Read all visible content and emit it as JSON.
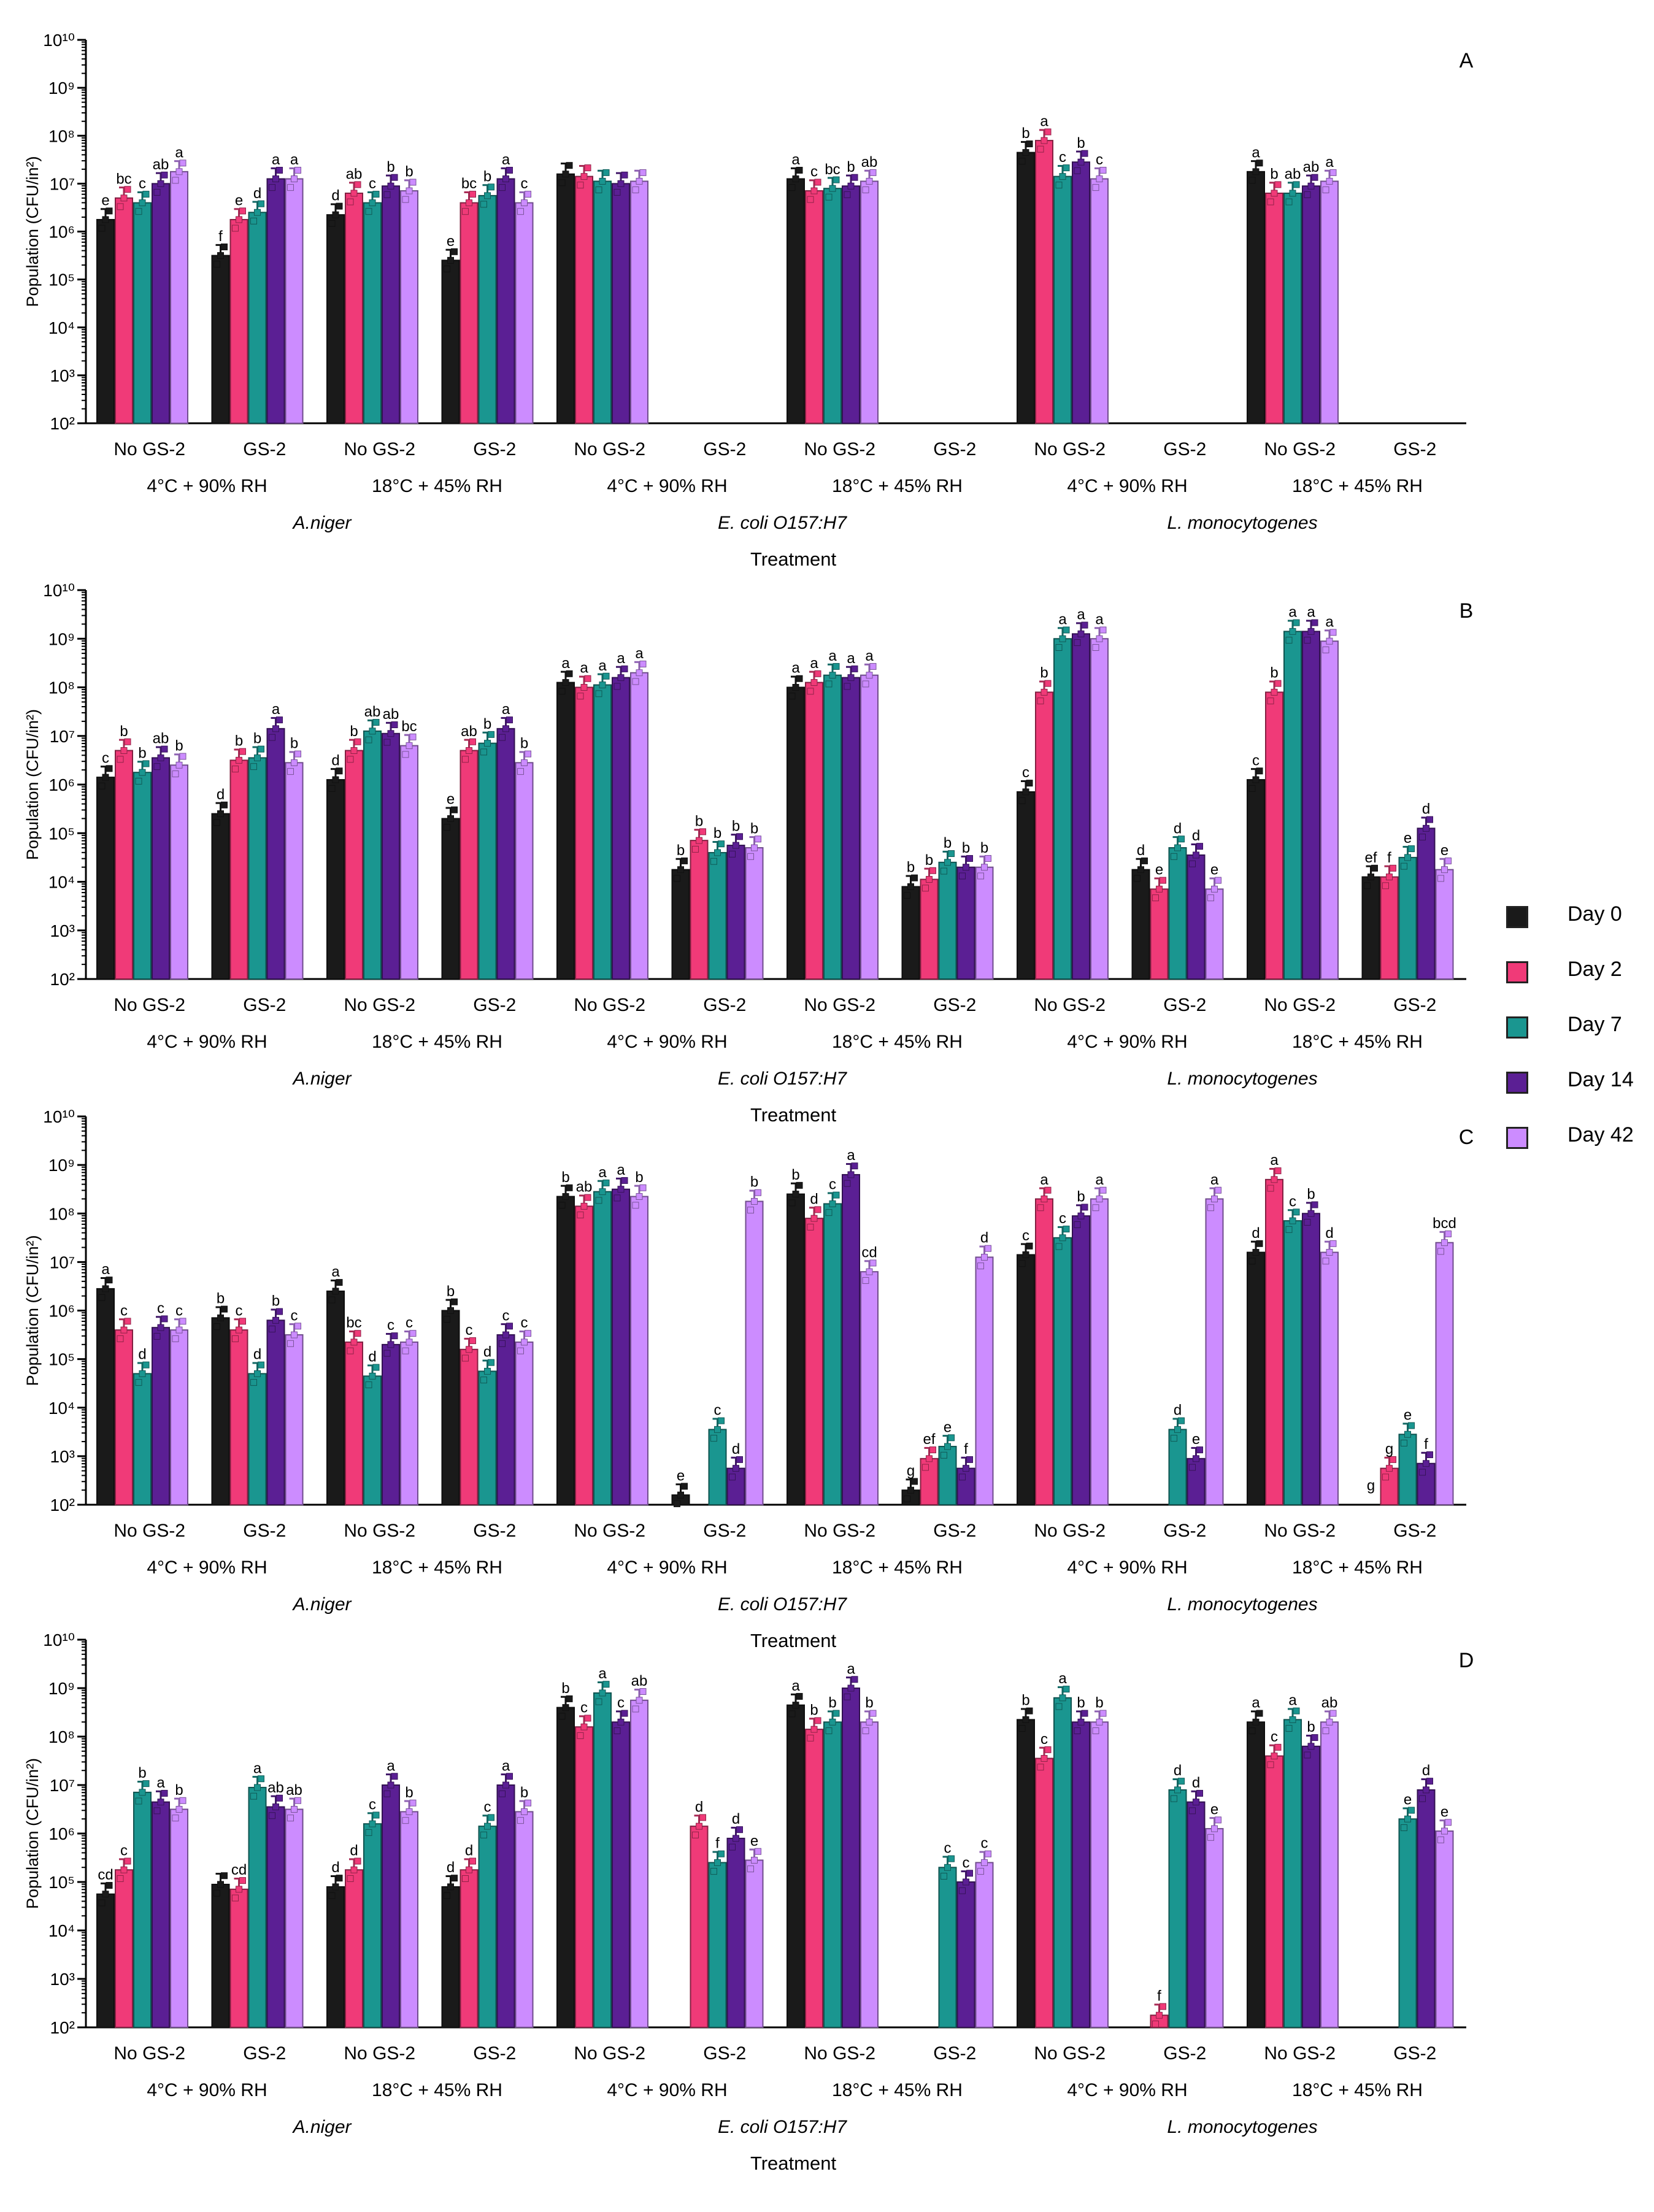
{
  "figure": {
    "legend": [
      {
        "label": "Day 0",
        "color": "#1a1a1a"
      },
      {
        "label": "Day 2",
        "color": "#f03a78"
      },
      {
        "label": "Day 7",
        "color": "#1a9690"
      },
      {
        "label": "Day 14",
        "color": "#5b1f94"
      },
      {
        "label": "Day 42",
        "color": "#cc8cff"
      }
    ]
  },
  "chart_data": [
    {
      "type": "bar",
      "panel_label": "A",
      "ylabel": "Population (CFU/in²)",
      "xlabel": "Treatment",
      "ylim_log10": [
        2,
        10
      ],
      "y_ticks": [
        "10²",
        "10³",
        "10⁴",
        "10⁵",
        "10⁶",
        "10⁷",
        "10⁸",
        "10⁹",
        "10¹⁰"
      ],
      "x_categories": [
        "No GS-2",
        "GS-2",
        "No GS-2",
        "GS-2",
        "No GS-2",
        "GS-2",
        "No GS-2",
        "GS-2",
        "No GS-2",
        "GS-2",
        "No GS-2",
        "GS-2"
      ],
      "conditions": [
        "4°C + 90% RH",
        "18°C + 45% RH",
        "4°C + 90% RH",
        "18°C + 45% RH",
        "4°C + 90% RH",
        "18°C + 45% RH"
      ],
      "organisms": [
        "A.niger",
        "E. coli O157:H7",
        "L. monocytogenes"
      ],
      "series": [
        {
          "name": "Day 0",
          "log10_values": [
            6.25,
            5.5,
            6.35,
            5.4,
            7.2,
            2,
            7.1,
            2,
            7.65,
            2,
            7.25,
            2
          ],
          "letters": [
            "e",
            "f",
            "d",
            "e",
            "",
            "",
            "a",
            "",
            "b",
            "",
            "a",
            ""
          ]
        },
        {
          "name": "Day 2",
          "log10_values": [
            6.7,
            6.25,
            6.8,
            6.6,
            7.15,
            2,
            6.85,
            2,
            7.9,
            2,
            6.8,
            2
          ],
          "letters": [
            "bc",
            "e",
            "ab",
            "bc",
            "",
            "",
            "c",
            "",
            "a",
            "",
            "b",
            ""
          ]
        },
        {
          "name": "Day 7",
          "log10_values": [
            6.6,
            6.4,
            6.6,
            6.75,
            7.05,
            2,
            6.9,
            2,
            7.15,
            2,
            6.8,
            2
          ],
          "letters": [
            "c",
            "d",
            "c",
            "b",
            "",
            "",
            "bc",
            "",
            "c",
            "",
            "ab",
            ""
          ]
        },
        {
          "name": "Day 14",
          "log10_values": [
            7.0,
            7.1,
            6.95,
            7.1,
            7.0,
            2,
            6.95,
            2,
            7.45,
            2,
            6.95,
            2
          ],
          "letters": [
            "ab",
            "a",
            "b",
            "a",
            "",
            "",
            "b",
            "",
            "b",
            "",
            "ab",
            ""
          ]
        },
        {
          "name": "Day 42",
          "log10_values": [
            7.25,
            7.1,
            6.85,
            6.6,
            7.05,
            2,
            7.05,
            2,
            7.1,
            2,
            7.05,
            2
          ],
          "letters": [
            "a",
            "a",
            "b",
            "c",
            "",
            "",
            "ab",
            "",
            "c",
            "",
            "a",
            ""
          ]
        }
      ]
    },
    {
      "type": "bar",
      "panel_label": "B",
      "ylabel": "Population (CFU/in²)",
      "xlabel": "Treatment",
      "ylim_log10": [
        2,
        10
      ],
      "y_ticks": [
        "10²",
        "10³",
        "10⁴",
        "10⁵",
        "10⁶",
        "10⁷",
        "10⁸",
        "10⁹",
        "10¹⁰"
      ],
      "x_categories": [
        "No GS-2",
        "GS-2",
        "No GS-2",
        "GS-2",
        "No GS-2",
        "GS-2",
        "No GS-2",
        "GS-2",
        "No GS-2",
        "GS-2",
        "No GS-2",
        "GS-2"
      ],
      "conditions": [
        "4°C + 90% RH",
        "18°C + 45% RH",
        "4°C + 90% RH",
        "18°C + 45% RH",
        "4°C + 90% RH",
        "18°C + 45% RH"
      ],
      "organisms": [
        "A.niger",
        "E. coli O157:H7",
        "L. monocytogenes"
      ],
      "series": [
        {
          "name": "Day 0",
          "log10_values": [
            6.15,
            5.4,
            6.1,
            5.3,
            8.1,
            4.25,
            8.0,
            3.9,
            5.85,
            4.25,
            6.1,
            4.1
          ],
          "letters": [
            "c",
            "d",
            "d",
            "e",
            "a",
            "b",
            "a",
            "b",
            "c",
            "d",
            "c",
            "ef"
          ]
        },
        {
          "name": "Day 2",
          "log10_values": [
            6.7,
            6.5,
            6.7,
            6.7,
            8.0,
            4.85,
            8.1,
            4.05,
            7.9,
            3.85,
            7.9,
            4.1
          ],
          "letters": [
            "b",
            "b",
            "b",
            "ab",
            "a",
            "b",
            "a",
            "b",
            "b",
            "e",
            "b",
            "f"
          ]
        },
        {
          "name": "Day 7",
          "log10_values": [
            6.25,
            6.55,
            7.1,
            6.85,
            8.05,
            4.6,
            8.25,
            4.4,
            9.0,
            4.7,
            9.15,
            4.5
          ],
          "letters": [
            "b",
            "b",
            "ab",
            "b",
            "a",
            "b",
            "a",
            "b",
            "a",
            "d",
            "a",
            "e"
          ]
        },
        {
          "name": "Day 14",
          "log10_values": [
            6.55,
            7.15,
            7.05,
            7.15,
            8.2,
            4.75,
            8.2,
            4.3,
            9.1,
            4.55,
            9.15,
            5.1
          ],
          "letters": [
            "ab",
            "a",
            "ab",
            "a",
            "a",
            "b",
            "a",
            "b",
            "a",
            "d",
            "a",
            "d"
          ]
        },
        {
          "name": "Day 42",
          "log10_values": [
            6.4,
            6.45,
            6.8,
            6.45,
            8.3,
            4.7,
            8.25,
            4.3,
            9.0,
            3.85,
            8.95,
            4.25
          ],
          "letters": [
            "b",
            "b",
            "bc",
            "b",
            "a",
            "b",
            "a",
            "b",
            "a",
            "e",
            "a",
            "e"
          ]
        }
      ]
    },
    {
      "type": "bar",
      "panel_label": "C",
      "ylabel": "Population (CFU/in²)",
      "xlabel": "Treatment",
      "ylim_log10": [
        2,
        10
      ],
      "y_ticks": [
        "10²",
        "10³",
        "10⁴",
        "10⁵",
        "10⁶",
        "10⁷",
        "10⁸",
        "10⁹",
        "10¹⁰"
      ],
      "x_categories": [
        "No GS-2",
        "GS-2",
        "No GS-2",
        "GS-2",
        "No GS-2",
        "GS-2",
        "No GS-2",
        "GS-2",
        "No GS-2",
        "GS-2",
        "No GS-2",
        "GS-2"
      ],
      "conditions": [
        "4°C + 90% RH",
        "18°C + 45% RH",
        "4°C + 90% RH",
        "18°C + 45% RH",
        "4°C + 90% RH",
        "18°C + 45% RH"
      ],
      "organisms": [
        "A.niger",
        "E. coli O157:H7",
        "L. monocytogenes"
      ],
      "series": [
        {
          "name": "Day 0",
          "log10_values": [
            6.45,
            5.85,
            6.4,
            6.0,
            8.35,
            2.2,
            8.4,
            2.3,
            7.15,
            2,
            7.2,
            2
          ],
          "letters": [
            "a",
            "b",
            "a",
            "b",
            "b",
            "e",
            "b",
            "g",
            "c",
            "",
            "d",
            "g"
          ]
        },
        {
          "name": "Day 2",
          "log10_values": [
            5.6,
            5.6,
            5.35,
            5.2,
            8.15,
            2,
            7.9,
            2.95,
            8.3,
            2,
            8.7,
            2.75
          ],
          "letters": [
            "c",
            "c",
            "bc",
            "c",
            "ab",
            "",
            "d",
            "ef",
            "a",
            "",
            "a",
            "g"
          ]
        },
        {
          "name": "Day 7",
          "log10_values": [
            4.7,
            4.7,
            4.65,
            4.75,
            8.45,
            3.55,
            8.2,
            3.2,
            7.5,
            3.55,
            7.85,
            3.45
          ],
          "letters": [
            "d",
            "d",
            "d",
            "d",
            "a",
            "c",
            "c",
            "e",
            "c",
            "d",
            "c",
            "e"
          ]
        },
        {
          "name": "Day 14",
          "log10_values": [
            5.65,
            5.8,
            5.3,
            5.5,
            8.5,
            2.75,
            8.8,
            2.75,
            7.95,
            2.95,
            8.0,
            2.85
          ],
          "letters": [
            "c",
            "b",
            "c",
            "c",
            "a",
            "d",
            "a",
            "f",
            "b",
            "e",
            "b",
            "f"
          ]
        },
        {
          "name": "Day 42",
          "log10_values": [
            5.6,
            5.5,
            5.35,
            5.35,
            8.35,
            8.25,
            6.8,
            7.1,
            8.3,
            8.3,
            7.2,
            7.4
          ],
          "letters": [
            "c",
            "c",
            "c",
            "c",
            "b",
            "b",
            "cd",
            "d",
            "a",
            "a",
            "d",
            "bcd"
          ]
        }
      ]
    },
    {
      "type": "bar",
      "panel_label": "D",
      "ylabel": "Population (CFU/in²)",
      "xlabel": "Treatment",
      "ylim_log10": [
        2,
        10
      ],
      "y_ticks": [
        "10²",
        "10³",
        "10⁴",
        "10⁵",
        "10⁶",
        "10⁷",
        "10⁸",
        "10⁹",
        "10¹⁰"
      ],
      "x_categories": [
        "No GS-2",
        "GS-2",
        "No GS-2",
        "GS-2",
        "No GS-2",
        "GS-2",
        "No GS-2",
        "GS-2",
        "No GS-2",
        "GS-2",
        "No GS-2",
        "GS-2"
      ],
      "conditions": [
        "4°C + 90% RH",
        "18°C + 45% RH",
        "4°C + 90% RH",
        "18°C + 45% RH",
        "4°C + 90% RH",
        "18°C + 45% RH"
      ],
      "organisms": [
        "A.niger",
        "E. coli O157:H7",
        "L. monocytogenes"
      ],
      "series": [
        {
          "name": "Day 0",
          "log10_values": [
            4.75,
            4.95,
            4.9,
            4.9,
            8.6,
            2,
            8.65,
            2,
            8.35,
            2,
            8.3,
            2
          ],
          "letters": [
            "cd",
            "",
            "d",
            "d",
            "b",
            "",
            "a",
            "",
            "b",
            "",
            "a",
            ""
          ]
        },
        {
          "name": "Day 2",
          "log10_values": [
            5.25,
            4.85,
            5.25,
            5.25,
            8.2,
            6.15,
            8.15,
            2,
            7.55,
            2.25,
            7.6,
            2
          ],
          "letters": [
            "c",
            "cd",
            "d",
            "d",
            "c",
            "d",
            "b",
            "",
            "c",
            "f",
            "c",
            ""
          ]
        },
        {
          "name": "Day 7",
          "log10_values": [
            6.85,
            6.95,
            6.2,
            6.15,
            8.9,
            5.4,
            8.3,
            5.3,
            8.8,
            6.9,
            8.35,
            6.3
          ],
          "letters": [
            "b",
            "a",
            "c",
            "c",
            "a",
            "f",
            "b",
            "c",
            "a",
            "d",
            "a",
            "e"
          ]
        },
        {
          "name": "Day 14",
          "log10_values": [
            6.65,
            6.55,
            7.0,
            7.0,
            8.3,
            5.9,
            9.0,
            5.0,
            8.3,
            6.65,
            7.8,
            6.9
          ],
          "letters": [
            "a",
            "ab",
            "a",
            "a",
            "c",
            "d",
            "a",
            "c",
            "b",
            "d",
            "b",
            "d"
          ]
        },
        {
          "name": "Day 42",
          "log10_values": [
            6.5,
            6.5,
            6.45,
            6.45,
            8.75,
            5.45,
            8.3,
            5.4,
            8.3,
            6.1,
            8.3,
            6.05
          ],
          "letters": [
            "b",
            "ab",
            "b",
            "b",
            "ab",
            "e",
            "b",
            "c",
            "b",
            "e",
            "ab",
            "e"
          ]
        }
      ]
    }
  ]
}
